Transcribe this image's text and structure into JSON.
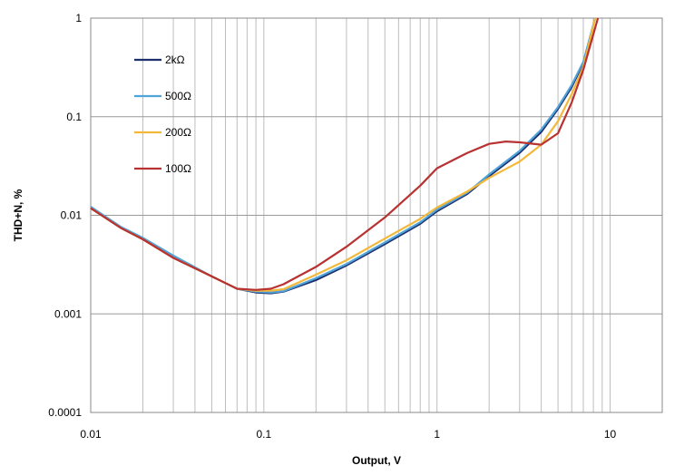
{
  "chart_data": {
    "type": "line",
    "title": "",
    "xlabel": "Output, V",
    "ylabel": "THD+N, %",
    "x_scale": "log",
    "y_scale": "log",
    "xlim": [
      0.01,
      20
    ],
    "ylim": [
      0.0001,
      1
    ],
    "x_ticks": [
      "0.01",
      "0.1",
      "1",
      "10"
    ],
    "y_ticks": [
      "1",
      "0.1",
      "0.01",
      "0.001",
      "0.0001"
    ],
    "grid": true,
    "legend_position": "top-left",
    "series": [
      {
        "name": "2kΩ",
        "color": "#1f2f6e",
        "x": [
          0.01,
          0.015,
          0.02,
          0.03,
          0.05,
          0.07,
          0.09,
          0.11,
          0.13,
          0.2,
          0.3,
          0.5,
          0.8,
          1,
          1.5,
          2,
          3,
          4,
          5,
          6,
          7,
          8.2
        ],
        "y": [
          0.012,
          0.0075,
          0.0058,
          0.0038,
          0.0024,
          0.0018,
          0.00165,
          0.00162,
          0.00168,
          0.0022,
          0.0031,
          0.0051,
          0.0082,
          0.011,
          0.0165,
          0.025,
          0.043,
          0.07,
          0.12,
          0.2,
          0.35,
          1.0
        ]
      },
      {
        "name": "500Ω",
        "color": "#4fa3d9",
        "x": [
          0.01,
          0.015,
          0.02,
          0.03,
          0.05,
          0.07,
          0.09,
          0.11,
          0.13,
          0.2,
          0.3,
          0.5,
          0.8,
          1,
          1.5,
          2,
          3,
          4,
          5,
          6,
          7,
          8.2
        ],
        "y": [
          0.0122,
          0.0076,
          0.0059,
          0.0039,
          0.0024,
          0.0018,
          0.00168,
          0.00165,
          0.0017,
          0.0023,
          0.0032,
          0.0053,
          0.0085,
          0.0114,
          0.017,
          0.026,
          0.045,
          0.074,
          0.125,
          0.21,
          0.36,
          1.0
        ]
      },
      {
        "name": "200Ω",
        "color": "#f3b83a",
        "x": [
          0.01,
          0.015,
          0.02,
          0.03,
          0.05,
          0.07,
          0.09,
          0.11,
          0.13,
          0.2,
          0.3,
          0.5,
          0.8,
          1,
          1.5,
          2,
          3,
          4,
          5,
          6,
          7,
          8.2
        ],
        "y": [
          0.0118,
          0.0074,
          0.0057,
          0.0037,
          0.0024,
          0.0018,
          0.00172,
          0.00172,
          0.00178,
          0.0025,
          0.0035,
          0.0058,
          0.0092,
          0.012,
          0.0175,
          0.024,
          0.035,
          0.052,
          0.09,
          0.17,
          0.32,
          1.0
        ]
      },
      {
        "name": "100Ω",
        "color": "#b83232",
        "x": [
          0.01,
          0.015,
          0.02,
          0.03,
          0.05,
          0.07,
          0.09,
          0.11,
          0.13,
          0.2,
          0.3,
          0.5,
          0.8,
          1,
          1.5,
          2,
          2.5,
          3,
          4,
          5,
          6,
          7,
          8.5
        ],
        "y": [
          0.0118,
          0.0074,
          0.0057,
          0.0037,
          0.0024,
          0.0018,
          0.00175,
          0.0018,
          0.002,
          0.003,
          0.0048,
          0.0095,
          0.02,
          0.03,
          0.043,
          0.053,
          0.056,
          0.055,
          0.052,
          0.068,
          0.14,
          0.3,
          1.0
        ]
      }
    ]
  }
}
